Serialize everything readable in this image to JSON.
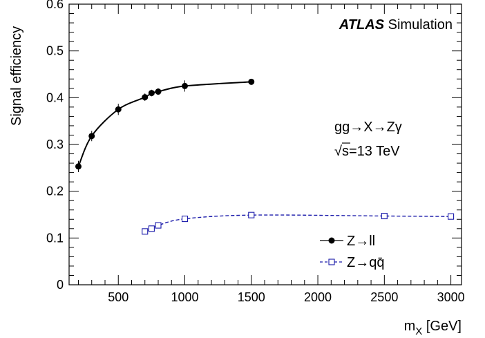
{
  "chart_data": {
    "type": "scatter",
    "xlabel_main": "m",
    "xlabel_sub": "X",
    "xlabel_unit": " [GeV]",
    "ylabel": "Signal efficiency",
    "xlim": [
      130,
      3080
    ],
    "ylim": [
      0,
      0.6
    ],
    "x_ticks": [
      500,
      1000,
      1500,
      2000,
      2500,
      3000
    ],
    "x_tick_labels": [
      "500",
      "1000",
      "1500",
      "2000",
      "2500",
      "3000"
    ],
    "y_ticks": [
      0,
      0.1,
      0.2,
      0.3,
      0.4,
      0.5,
      0.6
    ],
    "y_tick_labels": [
      "0",
      "0.1",
      "0.2",
      "0.3",
      "0.4",
      "0.5",
      "0.6"
    ],
    "grid": false,
    "legend_position": "bottom-right",
    "annotations": {
      "experiment": "ATLAS",
      "experiment_suffix": " Simulation",
      "process": "gg→X→Zγ",
      "energy_root": "√",
      "energy": "s=13 TeV"
    },
    "series": [
      {
        "name": "Z→ll",
        "marker": "filled-circle",
        "line": "solid",
        "color": "#000000",
        "x": [
          200,
          300,
          500,
          700,
          750,
          800,
          1000,
          1500
        ],
        "y": [
          0.253,
          0.318,
          0.375,
          0.401,
          0.41,
          0.413,
          0.425,
          0.434
        ],
        "yerr": [
          0.012,
          0.011,
          0.012,
          0.008,
          0.007,
          0.007,
          0.012,
          0.004
        ]
      },
      {
        "name": "Z→qq̄",
        "marker": "open-square",
        "line": "dashed",
        "color": "#1a1aaa",
        "x": [
          700,
          750,
          800,
          1000,
          1500,
          2500,
          3000
        ],
        "y": [
          0.114,
          0.12,
          0.127,
          0.141,
          0.149,
          0.147,
          0.146
        ],
        "yerr": [
          0,
          0,
          0,
          0,
          0,
          0,
          0
        ]
      }
    ]
  }
}
